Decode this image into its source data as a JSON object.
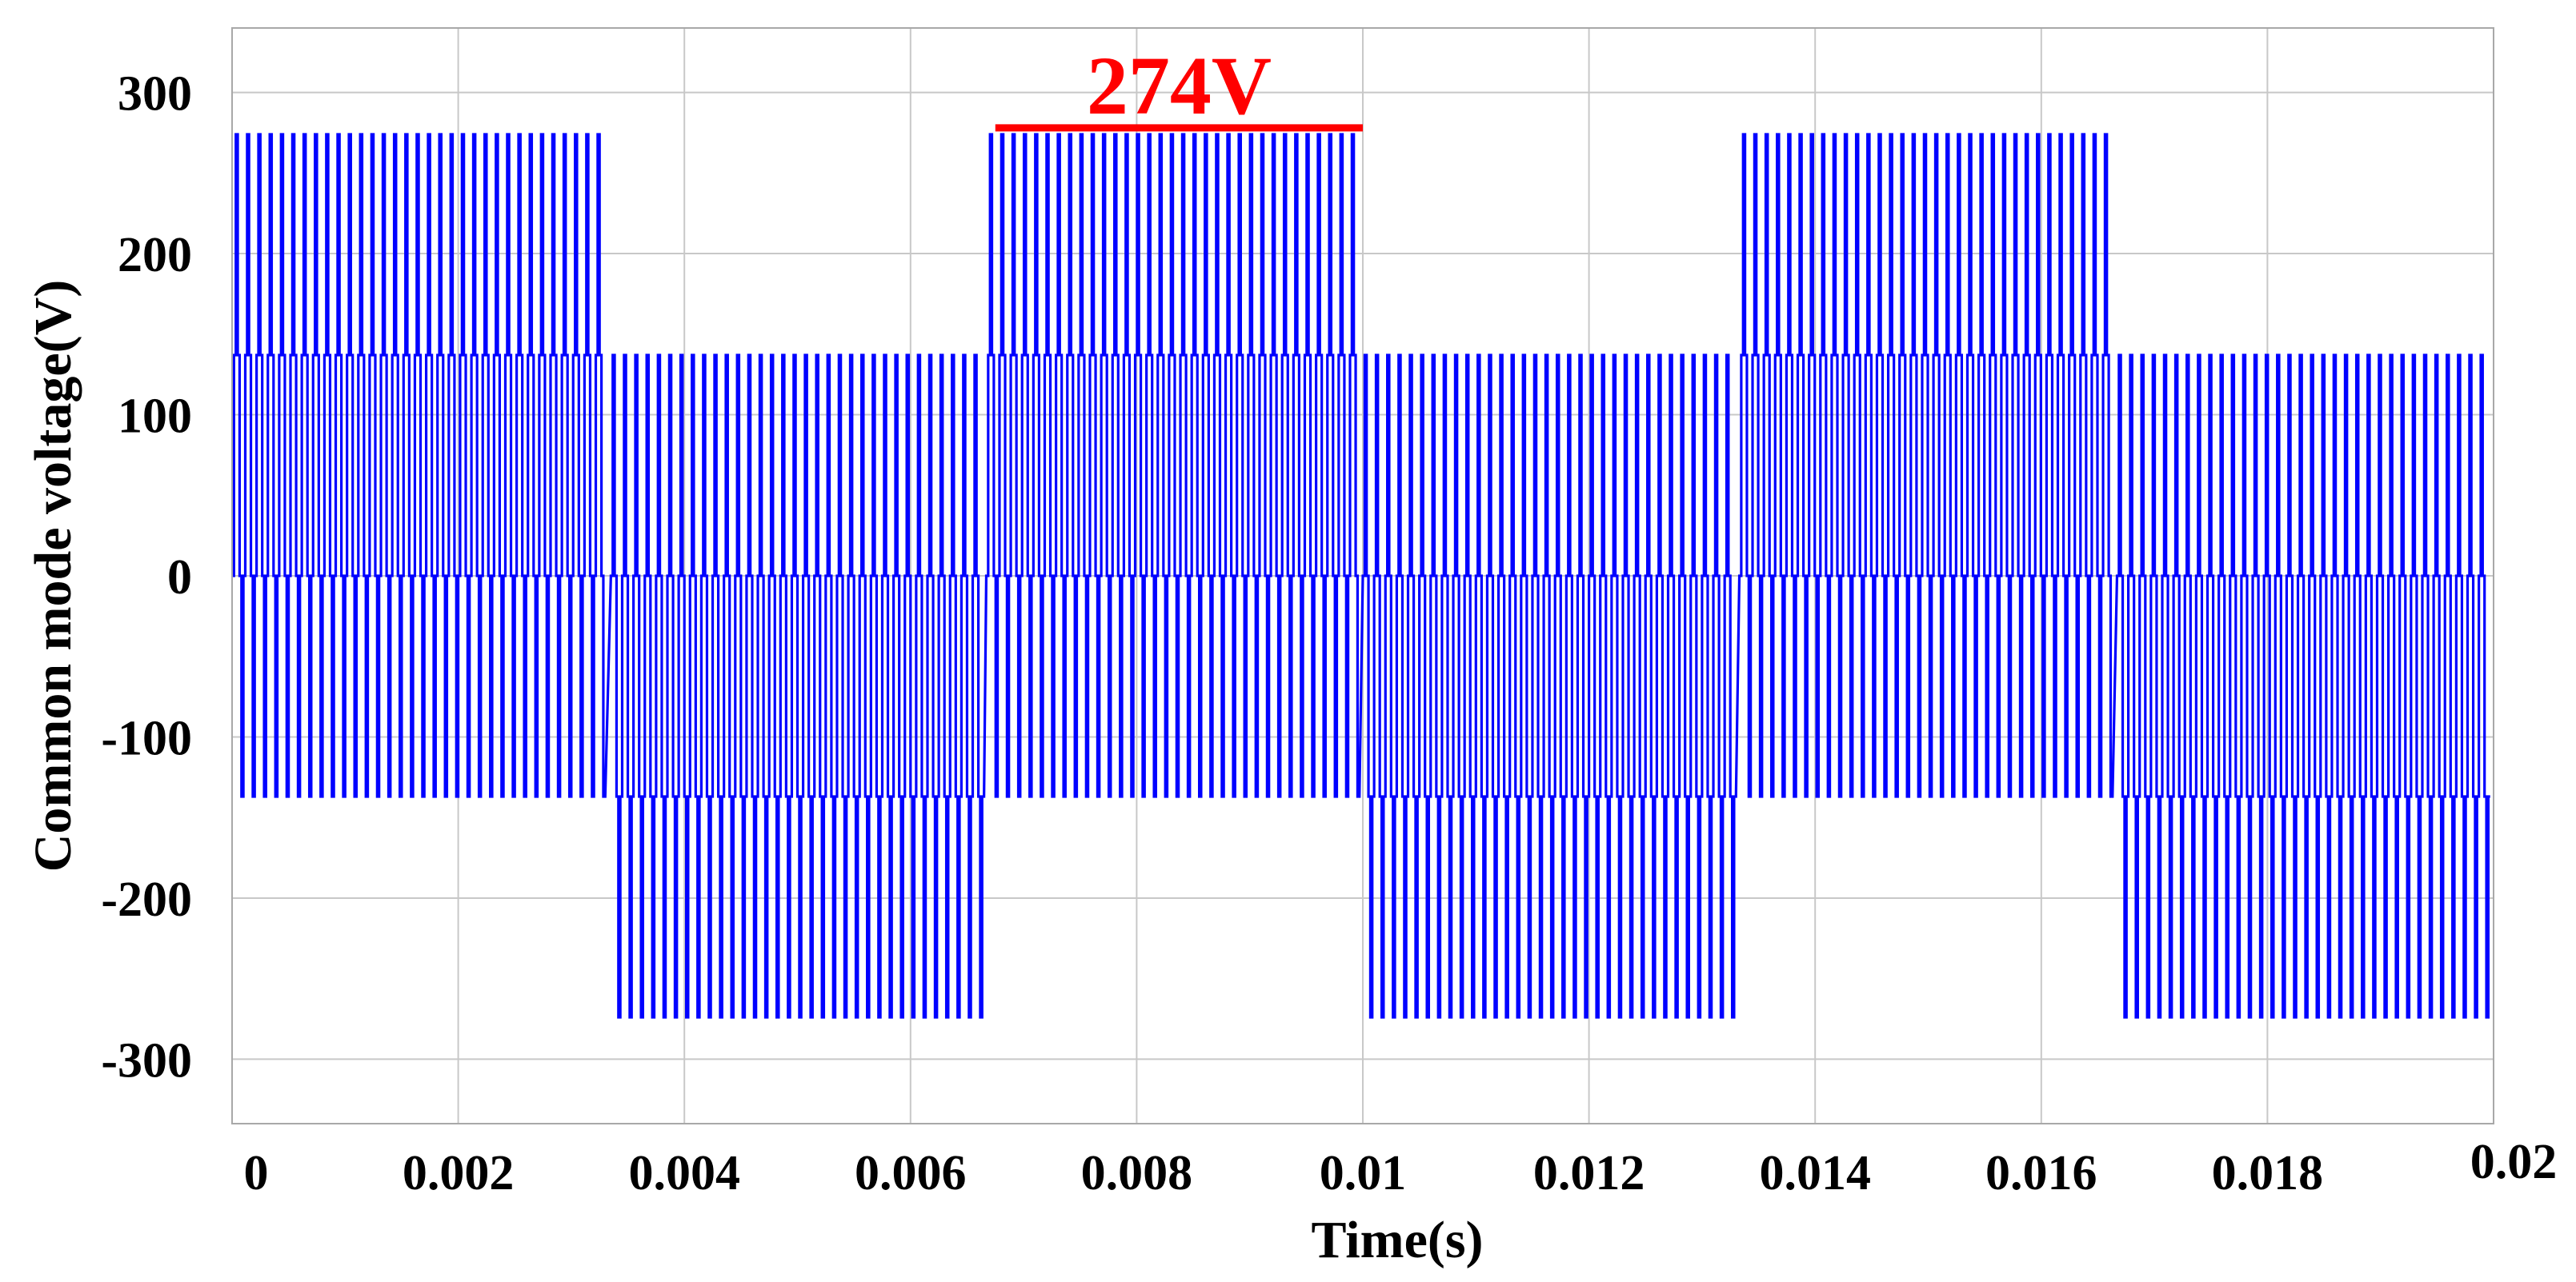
{
  "chart_data": {
    "type": "line",
    "title": "",
    "xlabel": "Time(s)",
    "ylabel": "Common mode voltage(V)",
    "xlim": [
      0,
      0.02
    ],
    "ylim": [
      -340,
      340
    ],
    "xticks": [
      0,
      0.002,
      0.004,
      0.006,
      0.008,
      0.01,
      0.012,
      0.014,
      0.016,
      0.018,
      0.02
    ],
    "xtick_labels": [
      "0",
      "0.002",
      "0.004",
      "0.006",
      "0.008",
      "0.01",
      "0.012",
      "0.014",
      "0.016",
      "0.018",
      "0.02"
    ],
    "yticks": [
      300,
      200,
      100,
      0,
      -100,
      -200,
      -300
    ],
    "ytick_labels": [
      "300",
      "200",
      "100",
      "0",
      "-100",
      "-200",
      "-300"
    ],
    "grid": true,
    "legend": "none",
    "series": [
      {
        "color": "#0000ff",
        "pulse_period_s": 0.0001,
        "segments": [
          {
            "x_start": 0.0,
            "x_end": 0.00335,
            "levels": [
              0,
              137,
              274,
              137,
              0,
              -137
            ]
          },
          {
            "x_start": 0.00335,
            "x_end": 0.00667,
            "levels": [
              0,
              137,
              0,
              -137,
              -274,
              -137
            ]
          },
          {
            "x_start": 0.00667,
            "x_end": 0.01,
            "levels": [
              0,
              137,
              274,
              137,
              0,
              -137
            ]
          },
          {
            "x_start": 0.01,
            "x_end": 0.01333,
            "levels": [
              0,
              137,
              0,
              -137,
              -274,
              -137
            ]
          },
          {
            "x_start": 0.01333,
            "x_end": 0.01667,
            "levels": [
              0,
              137,
              274,
              137,
              0,
              -137
            ]
          },
          {
            "x_start": 0.01667,
            "x_end": 0.02,
            "levels": [
              0,
              137,
              0,
              -137,
              -274,
              -137
            ]
          }
        ]
      }
    ],
    "annotations": [
      {
        "text": "274V",
        "color": "#ff0000",
        "x_start": 0.00675,
        "x_end": 0.01,
        "y": 278
      }
    ]
  }
}
